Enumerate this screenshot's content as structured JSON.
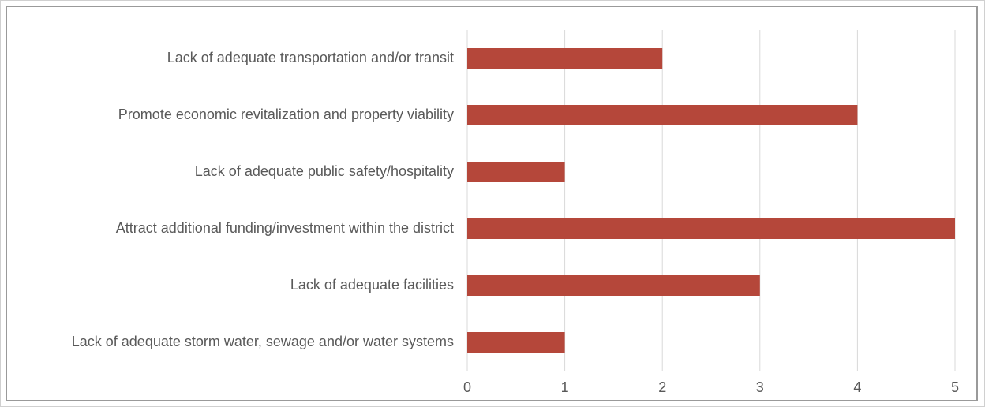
{
  "chart_data": {
    "type": "bar",
    "orientation": "horizontal",
    "categories": [
      "Lack of adequate transportation and/or transit",
      "Promote economic revitalization and property viability",
      "Lack of adequate public safety/hospitality",
      "Attract additional funding/investment within the district",
      "Lack of adequate facilities",
      "Lack of adequate storm water, sewage and/or water systems"
    ],
    "values": [
      2,
      4,
      1,
      5,
      3,
      1
    ],
    "color": "#b5473a",
    "xlim": [
      0,
      5
    ],
    "xticks": [
      0,
      1,
      2,
      3,
      4,
      5
    ],
    "grid": true
  }
}
